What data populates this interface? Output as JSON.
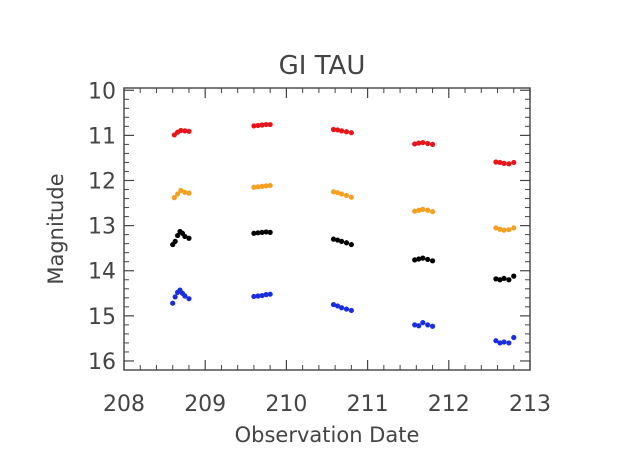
{
  "chart_data": {
    "type": "scatter",
    "title": "GI TAU",
    "xlabel": "Observation Date",
    "ylabel": "Magnitude",
    "xlim": [
      208,
      213
    ],
    "ylim": [
      16.2,
      9.95
    ],
    "y_inverted": true,
    "x_ticks": [
      "208",
      "209",
      "210",
      "211",
      "212",
      "213"
    ],
    "y_ticks": [
      "10",
      "11",
      "12",
      "13",
      "14",
      "15",
      "16"
    ],
    "grid": false,
    "series": [
      {
        "color": "#e8141a",
        "points": [
          [
            208.62,
            10.99
          ],
          [
            208.66,
            10.93
          ],
          [
            208.7,
            10.89
          ],
          [
            208.75,
            10.9
          ],
          [
            208.8,
            10.91
          ],
          [
            209.6,
            10.79
          ],
          [
            209.65,
            10.78
          ],
          [
            209.7,
            10.77
          ],
          [
            209.75,
            10.76
          ],
          [
            209.8,
            10.76
          ],
          [
            210.58,
            10.87
          ],
          [
            210.63,
            10.88
          ],
          [
            210.68,
            10.9
          ],
          [
            210.74,
            10.92
          ],
          [
            210.8,
            10.94
          ],
          [
            211.58,
            11.19
          ],
          [
            211.63,
            11.17
          ],
          [
            211.68,
            11.16
          ],
          [
            211.74,
            11.18
          ],
          [
            211.8,
            11.2
          ],
          [
            212.58,
            11.59
          ],
          [
            212.63,
            11.6
          ],
          [
            212.68,
            11.62
          ],
          [
            212.74,
            11.63
          ],
          [
            212.8,
            11.6
          ]
        ]
      },
      {
        "color": "#f5a020",
        "points": [
          [
            208.62,
            12.38
          ],
          [
            208.66,
            12.3
          ],
          [
            208.7,
            12.22
          ],
          [
            208.75,
            12.26
          ],
          [
            208.8,
            12.28
          ],
          [
            209.6,
            12.15
          ],
          [
            209.65,
            12.14
          ],
          [
            209.7,
            12.13
          ],
          [
            209.75,
            12.12
          ],
          [
            209.8,
            12.11
          ],
          [
            210.58,
            12.25
          ],
          [
            210.63,
            12.27
          ],
          [
            210.68,
            12.3
          ],
          [
            210.74,
            12.33
          ],
          [
            210.8,
            12.37
          ],
          [
            211.58,
            12.68
          ],
          [
            211.63,
            12.66
          ],
          [
            211.68,
            12.64
          ],
          [
            211.74,
            12.66
          ],
          [
            211.8,
            12.69
          ],
          [
            212.58,
            13.05
          ],
          [
            212.63,
            13.08
          ],
          [
            212.68,
            13.1
          ],
          [
            212.74,
            13.09
          ],
          [
            212.8,
            13.05
          ]
        ]
      },
      {
        "color": "#000000",
        "points": [
          [
            208.6,
            13.42
          ],
          [
            208.63,
            13.35
          ],
          [
            208.66,
            13.22
          ],
          [
            208.69,
            13.13
          ],
          [
            208.72,
            13.17
          ],
          [
            208.75,
            13.24
          ],
          [
            208.8,
            13.28
          ],
          [
            209.6,
            13.17
          ],
          [
            209.65,
            13.16
          ],
          [
            209.7,
            13.15
          ],
          [
            209.75,
            13.14
          ],
          [
            209.8,
            13.15
          ],
          [
            210.58,
            13.3
          ],
          [
            210.63,
            13.32
          ],
          [
            210.68,
            13.35
          ],
          [
            210.74,
            13.38
          ],
          [
            210.8,
            13.42
          ],
          [
            211.58,
            13.76
          ],
          [
            211.63,
            13.74
          ],
          [
            211.68,
            13.72
          ],
          [
            211.74,
            13.75
          ],
          [
            211.8,
            13.78
          ],
          [
            212.58,
            14.18
          ],
          [
            212.63,
            14.2
          ],
          [
            212.68,
            14.17
          ],
          [
            212.74,
            14.2
          ],
          [
            212.8,
            14.12
          ]
        ]
      },
      {
        "color": "#1a2ee0",
        "points": [
          [
            208.6,
            14.72
          ],
          [
            208.63,
            14.58
          ],
          [
            208.66,
            14.48
          ],
          [
            208.69,
            14.43
          ],
          [
            208.72,
            14.5
          ],
          [
            208.75,
            14.56
          ],
          [
            208.8,
            14.62
          ],
          [
            209.6,
            14.57
          ],
          [
            209.65,
            14.56
          ],
          [
            209.7,
            14.55
          ],
          [
            209.75,
            14.53
          ],
          [
            209.8,
            14.52
          ],
          [
            210.58,
            14.75
          ],
          [
            210.63,
            14.78
          ],
          [
            210.68,
            14.82
          ],
          [
            210.74,
            14.85
          ],
          [
            210.8,
            14.88
          ],
          [
            211.58,
            15.2
          ],
          [
            211.63,
            15.22
          ],
          [
            211.68,
            15.15
          ],
          [
            211.74,
            15.2
          ],
          [
            211.8,
            15.23
          ],
          [
            212.58,
            15.55
          ],
          [
            212.63,
            15.6
          ],
          [
            212.68,
            15.58
          ],
          [
            212.74,
            15.6
          ],
          [
            212.8,
            15.48
          ]
        ]
      }
    ]
  }
}
